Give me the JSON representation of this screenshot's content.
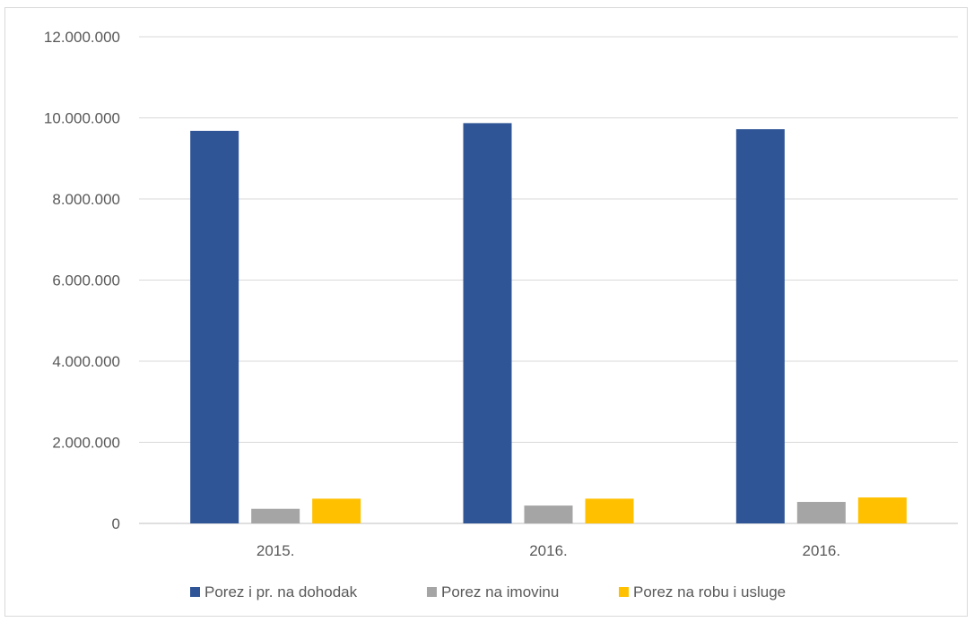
{
  "chart_data": {
    "type": "bar",
    "title": "",
    "xlabel": "",
    "ylabel": "",
    "categories": [
      "2015.",
      "2016.",
      "2016."
    ],
    "series": [
      {
        "name": "Porez i pr. na dohodak",
        "color": "#2f5597",
        "values": [
          9680000,
          9870000,
          9720000
        ]
      },
      {
        "name": "Porez na imovinu",
        "color": "#a5a5a5",
        "values": [
          360000,
          440000,
          530000
        ]
      },
      {
        "name": "Porez na robu i usluge",
        "color": "#ffc000",
        "values": [
          610000,
          610000,
          640000
        ]
      }
    ],
    "ylim": [
      0,
      12000000
    ],
    "y_ticks": [
      0,
      2000000,
      4000000,
      6000000,
      8000000,
      10000000,
      12000000
    ],
    "y_tick_labels": [
      "0",
      "2.000.000",
      "4.000.000",
      "6.000.000",
      "8.000.000",
      "10.000.000",
      "12.000.000"
    ],
    "grid": true,
    "legend_position": "bottom"
  }
}
